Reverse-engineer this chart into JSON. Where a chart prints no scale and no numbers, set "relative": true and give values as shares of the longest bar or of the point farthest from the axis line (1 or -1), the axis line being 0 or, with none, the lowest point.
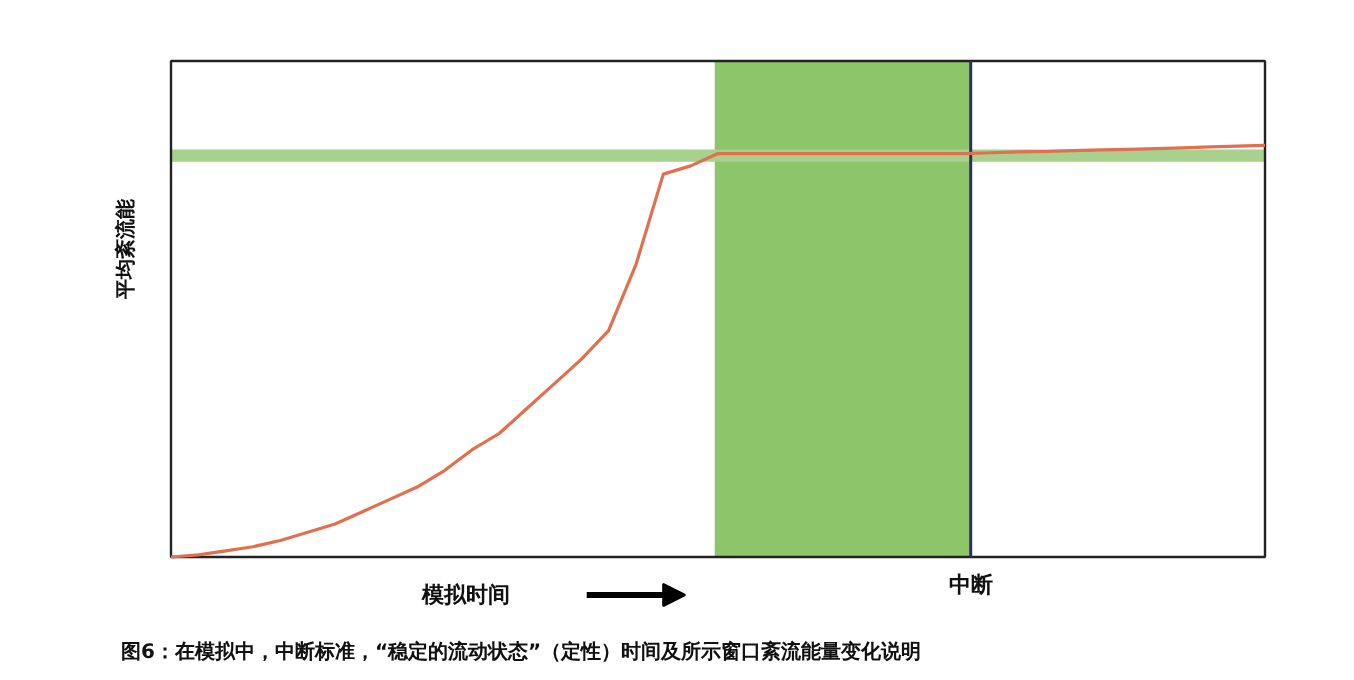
{
  "chart_data": {
    "type": "line",
    "relative": true,
    "xlabel": "模拟时间",
    "ylabel": "平均紊流能",
    "categories": [
      null,
      null,
      null,
      null,
      null,
      null,
      null,
      null,
      null,
      null,
      null,
      null,
      null,
      null,
      null,
      null,
      null,
      null,
      null,
      null,
      null,
      null,
      null,
      null,
      null,
      null,
      null,
      null,
      null,
      null,
      null,
      null,
      null,
      null,
      null,
      null,
      null,
      null,
      null,
      null,
      null
    ],
    "series": [
      {
        "color": "#e07050",
        "values": [
          0,
          0.005,
          0.015,
          0.025,
          0.04,
          0.06,
          0.08,
          0.11,
          0.14,
          0.17,
          0.21,
          0.26,
          0.3,
          0.36,
          0.42,
          0.48,
          0.55,
          0.71,
          0.93,
          0.95,
          0.98,
          0.98,
          0.98,
          0.98,
          0.98,
          0.98,
          0.98,
          0.98,
          0.98,
          0.98,
          0.982,
          0.984,
          0.985,
          0.987,
          0.989,
          0.99,
          0.992,
          0.994,
          0.996,
          0.998,
          1
        ]
      }
    ],
    "bands": [
      {
        "axis": "y",
        "from": 0.96,
        "to": 0.99,
        "color": "#a9d18e"
      }
    ],
    "annotations": [
      "中断",
      "图6：在模拟中，中断标准，“稳定的流动状态”（定性）时间及所示窗口紊流能量变化说明"
    ]
  }
}
